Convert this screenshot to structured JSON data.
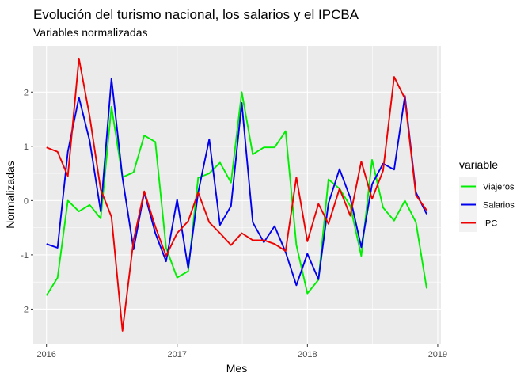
{
  "chart_data": {
    "type": "line",
    "title": "Evolución del turismo nacional, los salarios y el IPCBA",
    "subtitle": "Variables normalizadas",
    "xlabel": "Mes",
    "ylabel": "Normalizadas",
    "x_ticks": [
      "2016",
      "2017",
      "2018",
      "2019"
    ],
    "y_ticks": [
      "-2",
      "-1",
      "0",
      "1",
      "2"
    ],
    "xlim": [
      "2015-11-25",
      "2019-01-10"
    ],
    "ylim": [
      -2.65,
      2.85
    ],
    "grid": true,
    "legend": {
      "title": "variable",
      "position": "right"
    },
    "x": [
      "2016-01",
      "2016-02",
      "2016-03",
      "2016-04",
      "2016-05",
      "2016-06",
      "2016-07",
      "2016-08",
      "2016-09",
      "2016-10",
      "2016-11",
      "2016-12",
      "2017-01",
      "2017-02",
      "2017-03",
      "2017-04",
      "2017-05",
      "2017-06",
      "2017-07",
      "2017-08",
      "2017-09",
      "2017-10",
      "2017-11",
      "2017-12",
      "2018-01",
      "2018-02",
      "2018-03",
      "2018-04",
      "2018-05",
      "2018-06",
      "2018-07",
      "2018-08",
      "2018-09",
      "2018-10",
      "2018-11",
      "2018-12"
    ],
    "series": [
      {
        "name": "Viajeros",
        "color": "#00ee00",
        "values": [
          -1.75,
          -1.42,
          0.0,
          -0.2,
          -0.08,
          -0.33,
          1.73,
          0.43,
          0.52,
          1.2,
          1.08,
          -0.87,
          -1.42,
          -1.3,
          0.42,
          0.5,
          0.7,
          0.33,
          2.0,
          0.85,
          0.98,
          0.98,
          1.28,
          -0.82,
          -1.71,
          -1.46,
          0.39,
          0.22,
          -0.1,
          -1.02,
          0.75,
          -0.13,
          -0.37,
          0.0,
          -0.4,
          -1.62
        ]
      },
      {
        "name": "Salarios",
        "color": "#0000ee",
        "values": [
          -0.8,
          -0.87,
          0.9,
          1.9,
          1.1,
          -0.2,
          2.25,
          0.42,
          -0.9,
          0.15,
          -0.6,
          -1.12,
          0.02,
          -1.25,
          0.15,
          1.13,
          -0.45,
          -0.1,
          1.8,
          -0.4,
          -0.77,
          -0.47,
          -0.95,
          -1.56,
          -0.98,
          -1.45,
          -0.05,
          0.58,
          0.05,
          -0.86,
          0.3,
          0.68,
          0.57,
          1.93,
          0.15,
          -0.25
        ]
      },
      {
        "name": "IPC",
        "color": "#ee0000",
        "values": [
          0.98,
          0.9,
          0.45,
          2.62,
          1.55,
          0.2,
          -0.3,
          -2.4,
          -0.73,
          0.17,
          -0.48,
          -1.02,
          -0.6,
          -0.38,
          0.15,
          -0.4,
          -0.6,
          -0.82,
          -0.6,
          -0.73,
          -0.73,
          -0.8,
          -0.93,
          0.43,
          -0.75,
          -0.06,
          -0.43,
          0.22,
          -0.28,
          0.72,
          0.03,
          0.55,
          2.28,
          1.88,
          0.1,
          -0.18
        ]
      }
    ]
  }
}
